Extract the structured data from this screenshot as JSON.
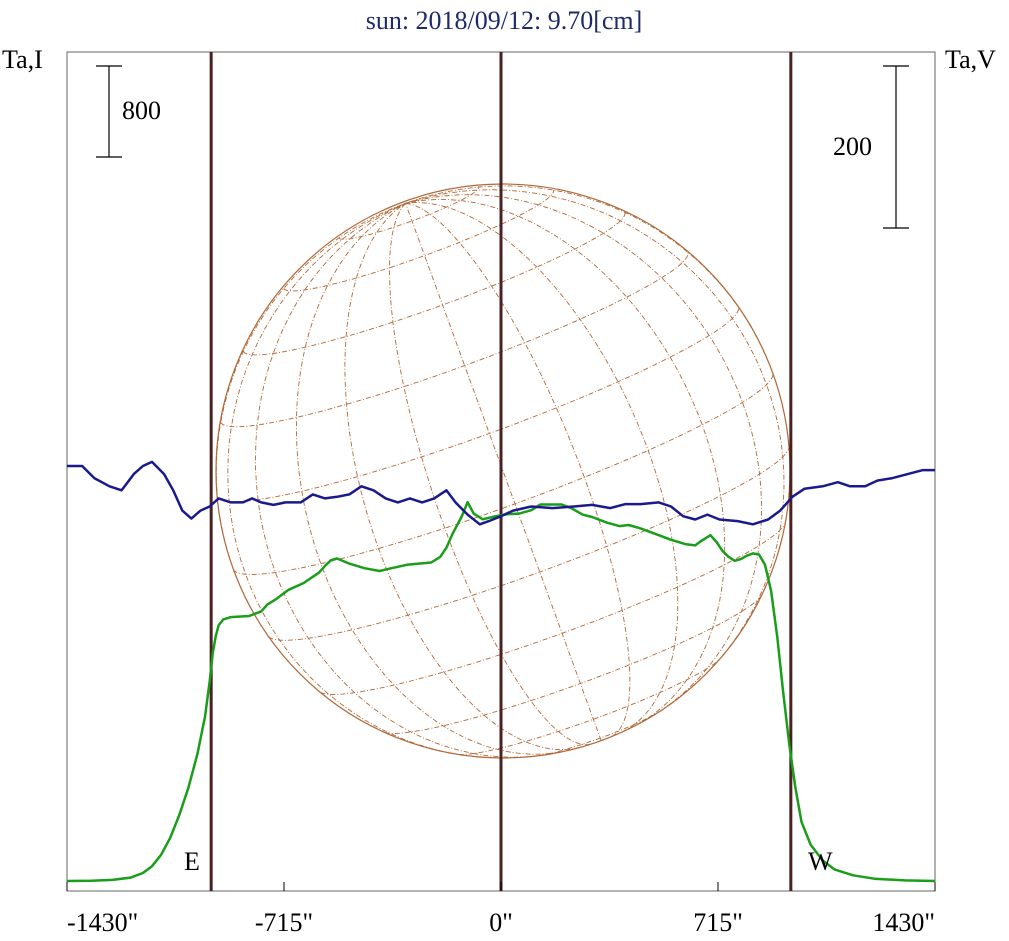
{
  "chart_data": {
    "type": "line",
    "title": "sun: 2018/09/12: 9.70[cm]",
    "title_color": "#1f2a6b",
    "left_axis_label": "Ta,I",
    "right_axis_label": "Ta,V",
    "x_range": [
      -1430,
      1430
    ],
    "x_ticks": [
      {
        "value": -1430,
        "label": "-1430\""
      },
      {
        "value": -715,
        "label": "-715\""
      },
      {
        "value": 0,
        "label": "0\""
      },
      {
        "value": 715,
        "label": "715\""
      },
      {
        "value": 1430,
        "label": "1430\""
      }
    ],
    "limb_lines": [
      -955,
      0,
      955
    ],
    "limb_markers": {
      "east": "E",
      "west": "W"
    },
    "scale_bar_I": {
      "label": "800",
      "value": 800
    },
    "scale_bar_V": {
      "label": "200",
      "value": 200
    },
    "series": [
      {
        "key": "I",
        "color": "#1a9e1a",
        "points": [
          [
            -1430,
            0
          ],
          [
            -1350,
            2
          ],
          [
            -1280,
            10
          ],
          [
            -1220,
            30
          ],
          [
            -1180,
            70
          ],
          [
            -1150,
            130
          ],
          [
            -1120,
            230
          ],
          [
            -1090,
            380
          ],
          [
            -1060,
            580
          ],
          [
            -1030,
            820
          ],
          [
            -1000,
            1120
          ],
          [
            -975,
            1450
          ],
          [
            -960,
            1750
          ],
          [
            -950,
            2000
          ],
          [
            -940,
            2150
          ],
          [
            -930,
            2250
          ],
          [
            -915,
            2300
          ],
          [
            -890,
            2320
          ],
          [
            -830,
            2330
          ],
          [
            -790,
            2370
          ],
          [
            -770,
            2430
          ],
          [
            -740,
            2480
          ],
          [
            -700,
            2560
          ],
          [
            -650,
            2620
          ],
          [
            -600,
            2710
          ],
          [
            -580,
            2770
          ],
          [
            -560,
            2820
          ],
          [
            -540,
            2835
          ],
          [
            -500,
            2790
          ],
          [
            -450,
            2750
          ],
          [
            -400,
            2725
          ],
          [
            -370,
            2745
          ],
          [
            -310,
            2780
          ],
          [
            -230,
            2800
          ],
          [
            -200,
            2850
          ],
          [
            -180,
            2930
          ],
          [
            -160,
            3050
          ],
          [
            -130,
            3200
          ],
          [
            -110,
            3330
          ],
          [
            -90,
            3230
          ],
          [
            -60,
            3180
          ],
          [
            -20,
            3205
          ],
          [
            20,
            3225
          ],
          [
            60,
            3230
          ],
          [
            100,
            3260
          ],
          [
            130,
            3310
          ],
          [
            200,
            3310
          ],
          [
            230,
            3280
          ],
          [
            270,
            3220
          ],
          [
            300,
            3200
          ],
          [
            350,
            3150
          ],
          [
            390,
            3120
          ],
          [
            420,
            3130
          ],
          [
            460,
            3100
          ],
          [
            520,
            3040
          ],
          [
            560,
            3000
          ],
          [
            610,
            2960
          ],
          [
            640,
            2950
          ],
          [
            660,
            2990
          ],
          [
            690,
            3040
          ],
          [
            710,
            2980
          ],
          [
            730,
            2900
          ],
          [
            750,
            2850
          ],
          [
            770,
            2815
          ],
          [
            790,
            2830
          ],
          [
            810,
            2860
          ],
          [
            830,
            2880
          ],
          [
            850,
            2870
          ],
          [
            870,
            2780
          ],
          [
            890,
            2550
          ],
          [
            910,
            2150
          ],
          [
            930,
            1650
          ],
          [
            950,
            1200
          ],
          [
            970,
            820
          ],
          [
            990,
            520
          ],
          [
            1020,
            320
          ],
          [
            1060,
            180
          ],
          [
            1100,
            100
          ],
          [
            1160,
            50
          ],
          [
            1230,
            20
          ],
          [
            1330,
            5
          ],
          [
            1430,
            0
          ]
        ]
      },
      {
        "key": "V",
        "color": "#1a1a8c",
        "points": [
          [
            -1430,
            0
          ],
          [
            -1380,
            0
          ],
          [
            -1340,
            -15
          ],
          [
            -1290,
            -25
          ],
          [
            -1250,
            -30
          ],
          [
            -1210,
            -10
          ],
          [
            -1180,
            0
          ],
          [
            -1150,
            5
          ],
          [
            -1110,
            -10
          ],
          [
            -1080,
            -30
          ],
          [
            -1050,
            -55
          ],
          [
            -1020,
            -65
          ],
          [
            -990,
            -55
          ],
          [
            -960,
            -50
          ],
          [
            -930,
            -40
          ],
          [
            -890,
            -45
          ],
          [
            -850,
            -45
          ],
          [
            -820,
            -40
          ],
          [
            -790,
            -45
          ],
          [
            -750,
            -48
          ],
          [
            -710,
            -45
          ],
          [
            -660,
            -45
          ],
          [
            -620,
            -35
          ],
          [
            -580,
            -40
          ],
          [
            -540,
            -38
          ],
          [
            -500,
            -35
          ],
          [
            -460,
            -25
          ],
          [
            -420,
            -30
          ],
          [
            -380,
            -40
          ],
          [
            -340,
            -45
          ],
          [
            -300,
            -40
          ],
          [
            -260,
            -45
          ],
          [
            -220,
            -40
          ],
          [
            -180,
            -30
          ],
          [
            -150,
            -45
          ],
          [
            -110,
            -60
          ],
          [
            -70,
            -72
          ],
          [
            -40,
            -68
          ],
          [
            0,
            -62
          ],
          [
            40,
            -55
          ],
          [
            100,
            -50
          ],
          [
            170,
            -52
          ],
          [
            240,
            -50
          ],
          [
            300,
            -48
          ],
          [
            360,
            -52
          ],
          [
            410,
            -47
          ],
          [
            460,
            -47
          ],
          [
            520,
            -45
          ],
          [
            560,
            -50
          ],
          [
            600,
            -62
          ],
          [
            640,
            -66
          ],
          [
            680,
            -60
          ],
          [
            720,
            -66
          ],
          [
            780,
            -68
          ],
          [
            830,
            -72
          ],
          [
            880,
            -66
          ],
          [
            920,
            -55
          ],
          [
            960,
            -38
          ],
          [
            1000,
            -28
          ],
          [
            1060,
            -25
          ],
          [
            1110,
            -20
          ],
          [
            1150,
            -25
          ],
          [
            1200,
            -25
          ],
          [
            1240,
            -18
          ],
          [
            1290,
            -15
          ],
          [
            1340,
            -10
          ],
          [
            1390,
            -5
          ],
          [
            1430,
            -5
          ]
        ]
      }
    ]
  }
}
